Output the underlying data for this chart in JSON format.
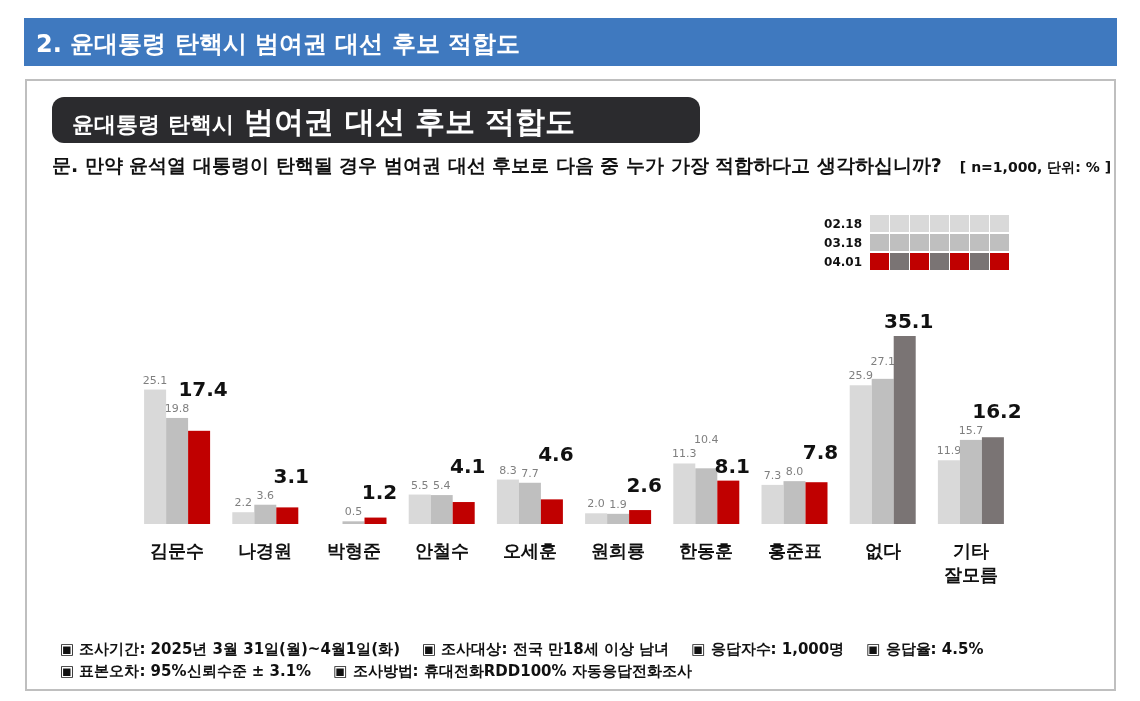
{
  "chart_data": {
    "type": "bar",
    "title": "2. 윤대통령 탄핵시 범여권 대선 후보 적합도",
    "subtitle": "윤대통령 탄핵시 범여권 대선 후보 적합도",
    "annotations": [
      "문. 만약 윤석열 대통령이 탄핵될 경우 범여권 대선 후보로 다음 중 누가 가장 적합하다고 생각하십니까?",
      "[ n=1,000, 단위: % ]",
      "▣ 조사기간: 2025년 3월 31일(월)~4월1일(화)",
      "▣ 조사대상: 전국 만18세 이상 남녀",
      "▣ 응답자수: 1,000명",
      "▣ 응답율: 4.5%",
      "▣ 표본오차: 95%신뢰수준 ± 3.1%",
      "▣ 조사방법: 휴대전화RDD100% 자동응답전화조사"
    ],
    "categories": [
      "김문수",
      "나경원",
      "박형준",
      "안철수",
      "오세훈",
      "원희룡",
      "한동훈",
      "홍준표",
      "없다",
      "기타\n잘모름"
    ],
    "series": [
      {
        "name": "02.18",
        "color": "#d9d9d9",
        "values": [
          25.1,
          2.2,
          null,
          5.5,
          8.3,
          2.0,
          11.3,
          7.3,
          25.9,
          11.9
        ],
        "value_labels": [
          "25.1",
          "2.2",
          null,
          "5.5",
          "8.3",
          "2.0",
          "11.3",
          "7.3",
          "25.9",
          "11.9"
        ]
      },
      {
        "name": "03.18",
        "color": "#bfbfbf",
        "values": [
          19.8,
          3.6,
          0.5,
          5.4,
          7.7,
          1.9,
          10.4,
          8.0,
          27.1,
          15.7
        ],
        "value_labels": [
          "19.8",
          "3.6",
          "0.5",
          "5.4",
          "7.7",
          "1.9",
          "10.4",
          "8.0",
          "27.1",
          "15.7"
        ]
      },
      {
        "name": "04.01",
        "color": "#c00000",
        "colors": [
          "#c00000",
          "#c00000",
          "#c00000",
          "#c00000",
          "#c00000",
          "#c00000",
          "#c00000",
          "#c00000",
          "#7a7474",
          "#7a7474"
        ],
        "values": [
          17.4,
          3.1,
          1.2,
          4.1,
          4.6,
          2.6,
          8.1,
          7.8,
          35.1,
          16.2
        ],
        "value_labels": [
          "17.4",
          "3.1",
          "1.2",
          "4.1",
          "4.6",
          "2.6",
          "8.1",
          "7.8",
          "35.1",
          "16.2"
        ]
      }
    ],
    "legend": "top right"
  }
}
